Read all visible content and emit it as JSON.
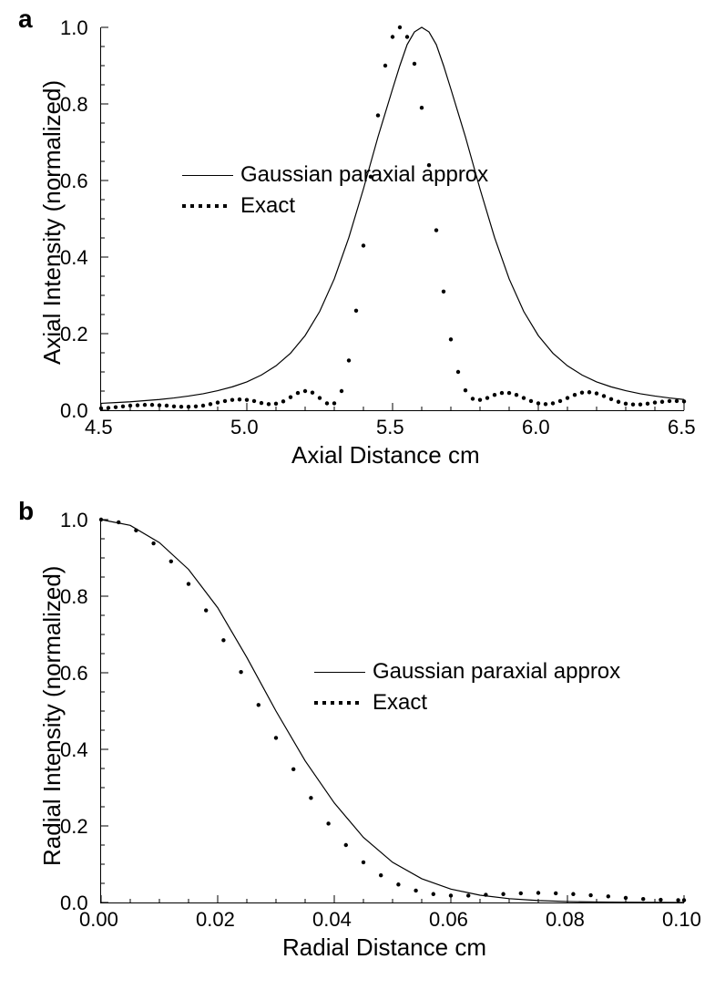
{
  "panel_a": {
    "label": "a",
    "type": "line",
    "xlabel": "Axial Distance cm",
    "ylabel": "Axial Intensity (normalized)",
    "label_fontsize": 26,
    "tick_fontsize": 22,
    "panel_label_fontsize": 28,
    "xlim": [
      4.5,
      6.5
    ],
    "ylim": [
      0.0,
      1.0
    ],
    "xtick_step": 0.5,
    "ytick_step": 0.2,
    "x_minor_per_major": 5,
    "y_minor_per_major": 4,
    "line_color": "#000000",
    "dot_color": "#000000",
    "background_color": "#ffffff",
    "legend": {
      "items": [
        {
          "style": "solid",
          "label": "Gaussian paraxial approx"
        },
        {
          "style": "dotted",
          "label": "Exact"
        }
      ]
    },
    "series_solid": {
      "style": "solid",
      "line_width": 1.2,
      "x": [
        4.5,
        4.55,
        4.6,
        4.65,
        4.7,
        4.75,
        4.8,
        4.85,
        4.9,
        4.95,
        5.0,
        5.05,
        5.1,
        5.15,
        5.2,
        5.25,
        5.3,
        5.35,
        5.4,
        5.45,
        5.5,
        5.525,
        5.55,
        5.575,
        5.6,
        5.625,
        5.65,
        5.675,
        5.7,
        5.75,
        5.8,
        5.85,
        5.9,
        5.95,
        6.0,
        6.05,
        6.1,
        6.15,
        6.2,
        6.25,
        6.3,
        6.35,
        6.4,
        6.45,
        6.5
      ],
      "y": [
        0.018,
        0.02,
        0.022,
        0.025,
        0.028,
        0.032,
        0.037,
        0.043,
        0.051,
        0.061,
        0.074,
        0.092,
        0.116,
        0.149,
        0.195,
        0.258,
        0.343,
        0.451,
        0.578,
        0.714,
        0.839,
        0.9,
        0.955,
        0.988,
        1.0,
        0.988,
        0.955,
        0.9,
        0.839,
        0.714,
        0.578,
        0.451,
        0.343,
        0.258,
        0.195,
        0.149,
        0.116,
        0.092,
        0.074,
        0.061,
        0.051,
        0.043,
        0.037,
        0.032,
        0.028
      ]
    },
    "series_dotted": {
      "style": "dotted",
      "dot_radius": 2.2,
      "x": [
        4.5,
        4.525,
        4.55,
        4.575,
        4.6,
        4.625,
        4.65,
        4.675,
        4.7,
        4.725,
        4.75,
        4.775,
        4.8,
        4.825,
        4.85,
        4.875,
        4.9,
        4.925,
        4.95,
        4.975,
        5.0,
        5.025,
        5.05,
        5.075,
        5.1,
        5.125,
        5.15,
        5.175,
        5.2,
        5.225,
        5.25,
        5.275,
        5.3,
        5.325,
        5.35,
        5.375,
        5.4,
        5.425,
        5.45,
        5.475,
        5.5,
        5.525,
        5.55,
        5.575,
        5.6,
        5.625,
        5.65,
        5.675,
        5.7,
        5.725,
        5.75,
        5.775,
        5.8,
        5.825,
        5.85,
        5.875,
        5.9,
        5.925,
        5.95,
        5.975,
        6.0,
        6.025,
        6.05,
        6.075,
        6.1,
        6.125,
        6.15,
        6.175,
        6.2,
        6.225,
        6.25,
        6.275,
        6.3,
        6.325,
        6.35,
        6.375,
        6.4,
        6.425,
        6.45,
        6.475,
        6.5
      ],
      "y": [
        0.005,
        0.006,
        0.008,
        0.01,
        0.012,
        0.013,
        0.014,
        0.014,
        0.013,
        0.012,
        0.01,
        0.009,
        0.009,
        0.01,
        0.012,
        0.016,
        0.02,
        0.024,
        0.027,
        0.028,
        0.027,
        0.024,
        0.019,
        0.016,
        0.017,
        0.023,
        0.034,
        0.045,
        0.05,
        0.046,
        0.032,
        0.018,
        0.018,
        0.05,
        0.13,
        0.26,
        0.43,
        0.61,
        0.77,
        0.9,
        0.975,
        1.0,
        0.975,
        0.905,
        0.79,
        0.64,
        0.47,
        0.31,
        0.185,
        0.1,
        0.052,
        0.03,
        0.027,
        0.032,
        0.04,
        0.045,
        0.045,
        0.04,
        0.032,
        0.024,
        0.018,
        0.016,
        0.018,
        0.024,
        0.032,
        0.04,
        0.046,
        0.047,
        0.044,
        0.037,
        0.029,
        0.022,
        0.017,
        0.015,
        0.015,
        0.017,
        0.02,
        0.022,
        0.024,
        0.024,
        0.023
      ]
    }
  },
  "panel_b": {
    "label": "b",
    "type": "line",
    "xlabel": "Radial Distance cm",
    "ylabel": "Radial Intensity (normalized)",
    "label_fontsize": 26,
    "tick_fontsize": 22,
    "panel_label_fontsize": 28,
    "xlim": [
      0.0,
      0.1
    ],
    "ylim": [
      0.0,
      1.0
    ],
    "xtick_step": 0.02,
    "ytick_step": 0.2,
    "x_minor_per_major": 4,
    "y_minor_per_major": 4,
    "line_color": "#000000",
    "dot_color": "#000000",
    "background_color": "#ffffff",
    "legend": {
      "items": [
        {
          "style": "solid",
          "label": "Gaussian paraxial approx"
        },
        {
          "style": "dotted",
          "label": "Exact"
        }
      ]
    },
    "series_solid": {
      "style": "solid",
      "line_width": 1.2,
      "x": [
        0.0,
        0.005,
        0.01,
        0.015,
        0.02,
        0.025,
        0.03,
        0.035,
        0.04,
        0.045,
        0.05,
        0.055,
        0.06,
        0.065,
        0.07,
        0.075,
        0.08,
        0.085,
        0.09,
        0.095,
        0.1
      ],
      "y": [
        1.0,
        0.985,
        0.94,
        0.87,
        0.77,
        0.64,
        0.5,
        0.37,
        0.26,
        0.17,
        0.105,
        0.062,
        0.035,
        0.019,
        0.01,
        0.005,
        0.0025,
        0.0012,
        0.0006,
        0.0003,
        0.0001
      ]
    },
    "series_dotted": {
      "style": "dotted",
      "dot_radius": 2.2,
      "x": [
        0.0,
        0.003,
        0.006,
        0.009,
        0.012,
        0.015,
        0.018,
        0.021,
        0.024,
        0.027,
        0.03,
        0.033,
        0.036,
        0.039,
        0.042,
        0.045,
        0.048,
        0.051,
        0.054,
        0.057,
        0.06,
        0.063,
        0.066,
        0.069,
        0.072,
        0.075,
        0.078,
        0.081,
        0.084,
        0.087,
        0.09,
        0.093,
        0.096,
        0.099,
        0.1
      ],
      "y": [
        1.0,
        0.993,
        0.972,
        0.938,
        0.891,
        0.832,
        0.763,
        0.685,
        0.602,
        0.516,
        0.43,
        0.348,
        0.273,
        0.206,
        0.15,
        0.105,
        0.071,
        0.047,
        0.031,
        0.022,
        0.018,
        0.018,
        0.02,
        0.022,
        0.024,
        0.025,
        0.024,
        0.022,
        0.019,
        0.016,
        0.012,
        0.009,
        0.007,
        0.006,
        0.006
      ]
    }
  }
}
